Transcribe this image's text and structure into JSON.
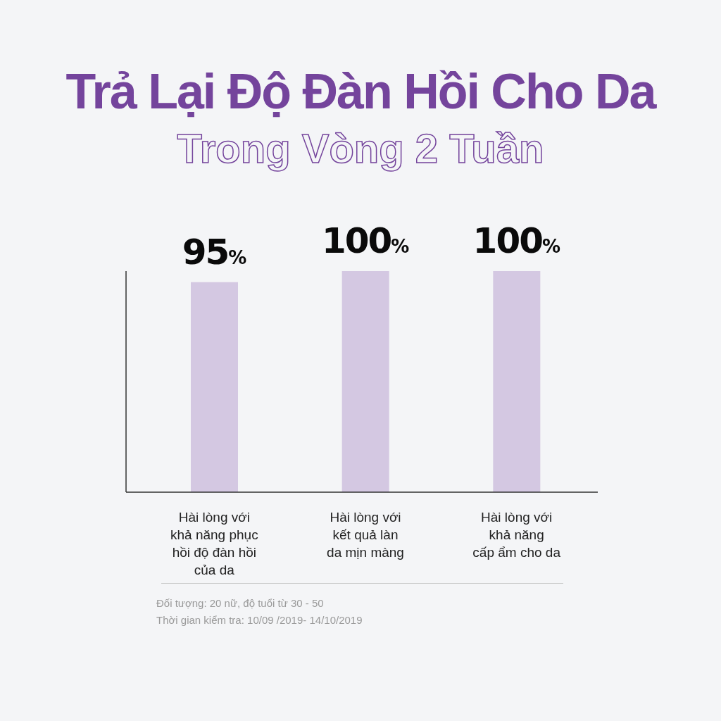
{
  "chart_data": {
    "type": "bar",
    "title": "Trả Lại Độ Đàn Hồi Cho Da",
    "subtitle": "Trong Vòng 2 Tuần",
    "categories": [
      "Hài lòng với\nkhả năng phục\nhồi độ đàn hồi\ncủa da",
      "Hài lòng với\nkết quả làn\nda mịn màng",
      "Hài lòng với\nkhả năng\ncấp ẩm cho da"
    ],
    "values": [
      95,
      100,
      100
    ],
    "value_labels": [
      "95%",
      "100%",
      "100%"
    ],
    "color": "#d4c8e2",
    "ylim": [
      0,
      100
    ],
    "tick_labels": "x",
    "annotations": [
      "Đối tượng: 20 nữ, độ tuổi từ 30 - 50",
      "Thời gian kiểm tra: 10/09 /2019- 14/10/2019"
    ]
  }
}
